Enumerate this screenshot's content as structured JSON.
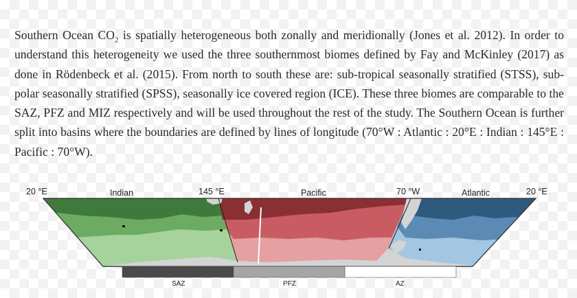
{
  "paragraph": {
    "sentence1_pre": "Southern Ocean CO",
    "sentence1_sub": "2",
    "sentence1_post": " is spatially heterogeneous both zonally and meridionally (Jones et al. 2012). In order to understand this heterogeneity we used the three southernmost biomes defined by Fay and McKinley (2017) as done in Rödenbeck et al. (2015). From north to south these are: sub-tropical seasonally stratified (STSS), sub-polar seasonally stratified (SPSS), seasonally ice covered region (ICE). These three biomes are comparable to the SAZ, PFZ and MIZ respectively and will be used throughout the rest of the study. The Southern Ocean is further split into basins where the boundaries are defined by lines of longitude (70°W : Atlantic : 20°E : Indian : 145°E : Pacific : 70°W)."
  },
  "figure": {
    "longitude_labels": {
      "left_20e": "20 °E",
      "mid_145e": "145 °E",
      "mid_70w": "70 °W",
      "right_20e": "20 °E"
    },
    "basin_labels": {
      "indian": "Indian",
      "pacific": "Pacific",
      "atlantic": "Atlantic"
    },
    "legend": {
      "saz": "SAZ",
      "pfz": "PFZ",
      "az": "AZ"
    },
    "colors": {
      "indian": [
        "#3f7a3c",
        "#6cab62",
        "#a6d39c"
      ],
      "pacific": [
        "#8a2f33",
        "#c95c63",
        "#e5a0a4"
      ],
      "atlantic": [
        "#2f5a80",
        "#5b8bb4",
        "#a3c6e2"
      ],
      "land": "#d4d4d4",
      "legend_saz": "#4a4a4a",
      "legend_pfz": "#a6a6a6",
      "legend_az": "#ffffff"
    }
  }
}
